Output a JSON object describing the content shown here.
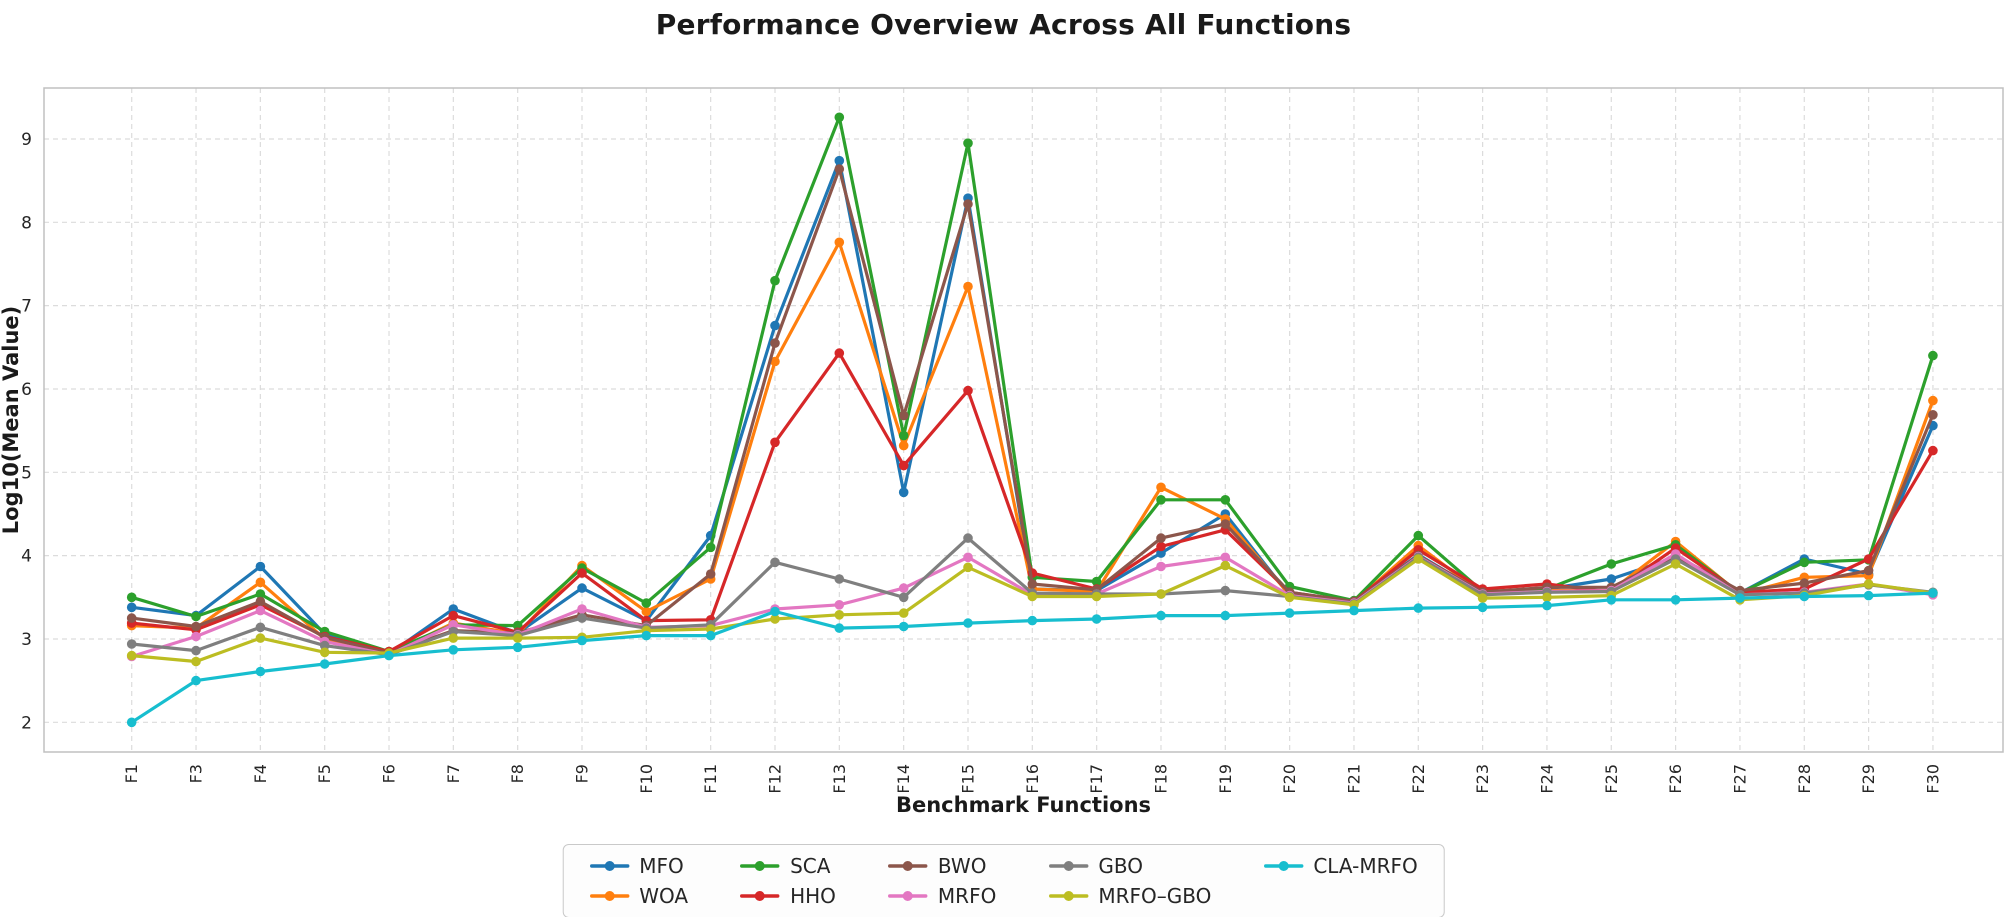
{
  "title": "Performance Overview Across All Functions",
  "chart_data": {
    "type": "line",
    "title": "Performance Overview Across All Functions",
    "xlabel": "Benchmark Functions",
    "ylabel": "Log10(Mean Value)",
    "categories": [
      "F1",
      "F3",
      "F4",
      "F5",
      "F6",
      "F7",
      "F8",
      "F9",
      "F10",
      "F11",
      "F12",
      "F13",
      "F14",
      "F15",
      "F16",
      "F17",
      "F18",
      "F19",
      "F20",
      "F21",
      "F22",
      "F23",
      "F24",
      "F25",
      "F26",
      "F27",
      "F28",
      "F29",
      "F30"
    ],
    "yticks": [
      2,
      3,
      4,
      5,
      6,
      7,
      8,
      9
    ],
    "ylim": [
      1.64,
      9.62
    ],
    "grid": "dashed, both axes",
    "legend_position": "bottom center, 2 rows",
    "series": [
      {
        "name": "MFO",
        "color": "#1f77b4",
        "values": [
          3.38,
          3.28,
          3.87,
          3.06,
          2.82,
          3.36,
          3.07,
          3.61,
          3.22,
          4.24,
          6.76,
          8.74,
          4.76,
          8.29,
          3.6,
          3.58,
          4.03,
          4.5,
          3.52,
          3.44,
          4.01,
          3.55,
          3.6,
          3.72,
          3.98,
          3.55,
          3.96,
          3.78,
          5.56
        ]
      },
      {
        "name": "WOA",
        "color": "#ff7f0e",
        "values": [
          3.16,
          3.13,
          3.68,
          3.0,
          2.82,
          3.19,
          3.06,
          3.88,
          3.33,
          3.72,
          6.33,
          7.76,
          5.32,
          7.23,
          3.6,
          3.57,
          4.82,
          4.44,
          3.53,
          3.44,
          4.12,
          3.54,
          3.58,
          3.58,
          4.17,
          3.54,
          3.74,
          3.76,
          5.86
        ]
      },
      {
        "name": "SCA",
        "color": "#2ca02c",
        "values": [
          3.5,
          3.27,
          3.54,
          3.09,
          2.85,
          3.17,
          3.16,
          3.85,
          3.43,
          4.1,
          7.3,
          9.26,
          5.44,
          8.95,
          3.74,
          3.69,
          4.67,
          4.67,
          3.63,
          3.46,
          4.24,
          3.57,
          3.6,
          3.9,
          4.13,
          3.55,
          3.92,
          3.95,
          6.4
        ]
      },
      {
        "name": "HHO",
        "color": "#d62728",
        "values": [
          3.19,
          3.11,
          3.41,
          3.03,
          2.85,
          3.28,
          3.08,
          3.79,
          3.22,
          3.23,
          5.36,
          6.43,
          5.08,
          5.98,
          3.79,
          3.6,
          4.11,
          4.31,
          3.56,
          3.45,
          4.07,
          3.6,
          3.66,
          3.56,
          4.09,
          3.56,
          3.6,
          3.96,
          5.26
        ]
      },
      {
        "name": "BWO",
        "color": "#8c564b",
        "values": [
          3.25,
          3.15,
          3.45,
          3.02,
          2.83,
          3.1,
          3.07,
          3.29,
          3.16,
          3.78,
          6.55,
          8.64,
          5.68,
          8.22,
          3.66,
          3.59,
          4.21,
          4.38,
          3.56,
          3.45,
          4.0,
          3.56,
          3.62,
          3.62,
          4.0,
          3.58,
          3.67,
          3.82,
          5.69
        ]
      },
      {
        "name": "MRFO",
        "color": "#e377c2",
        "values": [
          2.79,
          3.03,
          3.34,
          2.97,
          2.81,
          3.17,
          3.05,
          3.36,
          3.14,
          3.16,
          3.36,
          3.41,
          3.61,
          3.98,
          3.53,
          3.54,
          3.87,
          3.98,
          3.52,
          3.43,
          3.99,
          3.54,
          3.57,
          3.58,
          4.02,
          3.53,
          3.56,
          3.66,
          3.53
        ]
      },
      {
        "name": "GBO",
        "color": "#7f7f7f",
        "values": [
          2.94,
          2.86,
          3.14,
          2.92,
          2.81,
          3.09,
          3.04,
          3.25,
          3.13,
          3.17,
          3.92,
          3.72,
          3.5,
          4.21,
          3.55,
          3.54,
          3.54,
          3.58,
          3.51,
          3.42,
          3.98,
          3.53,
          3.56,
          3.57,
          3.96,
          3.53,
          3.55,
          3.65,
          3.56
        ]
      },
      {
        "name": "MRFO–GBO",
        "color": "#bcbd22",
        "values": [
          2.8,
          2.73,
          3.01,
          2.84,
          2.83,
          3.01,
          3.01,
          3.02,
          3.1,
          3.12,
          3.24,
          3.29,
          3.31,
          3.86,
          3.51,
          3.51,
          3.54,
          3.88,
          3.5,
          3.41,
          3.96,
          3.49,
          3.5,
          3.52,
          3.9,
          3.47,
          3.52,
          3.66,
          3.55
        ]
      },
      {
        "name": "CLA-MRFO",
        "color": "#17becf",
        "values": [
          2.0,
          2.5,
          2.61,
          2.7,
          2.8,
          2.87,
          2.9,
          2.98,
          3.04,
          3.04,
          3.33,
          3.13,
          3.15,
          3.19,
          3.22,
          3.24,
          3.28,
          3.28,
          3.31,
          3.34,
          3.37,
          3.38,
          3.4,
          3.47,
          3.47,
          3.49,
          3.51,
          3.52,
          3.55
        ]
      }
    ],
    "legend_rows": [
      [
        "MFO",
        "SCA",
        "BWO",
        "GBO",
        "CLA-MRFO"
      ],
      [
        "WOA",
        "HHO",
        "MRFO",
        "MRFO–GBO"
      ]
    ]
  }
}
